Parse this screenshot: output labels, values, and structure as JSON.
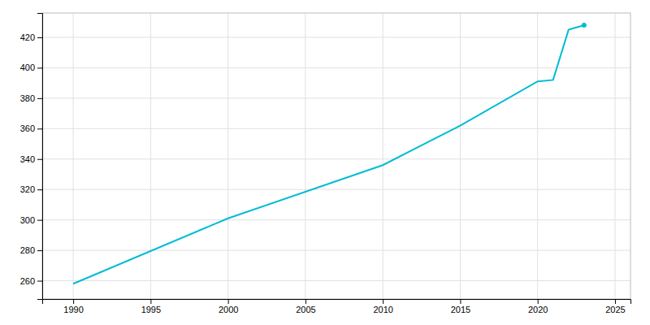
{
  "chart_data": {
    "type": "line",
    "x": [
      1990,
      2000,
      2010,
      2015,
      2020,
      2021,
      2022,
      2023
    ],
    "values": [
      258,
      301,
      336,
      362,
      391,
      392,
      425,
      428
    ],
    "color": "#00BCD4",
    "xlim": [
      1988,
      2026
    ],
    "ylim": [
      248,
      436
    ],
    "xticks": [
      1990,
      1995,
      2000,
      2005,
      2010,
      2015,
      2020,
      2025
    ],
    "yticks": [
      260,
      280,
      300,
      320,
      340,
      360,
      380,
      400,
      420
    ],
    "grid": true
  }
}
